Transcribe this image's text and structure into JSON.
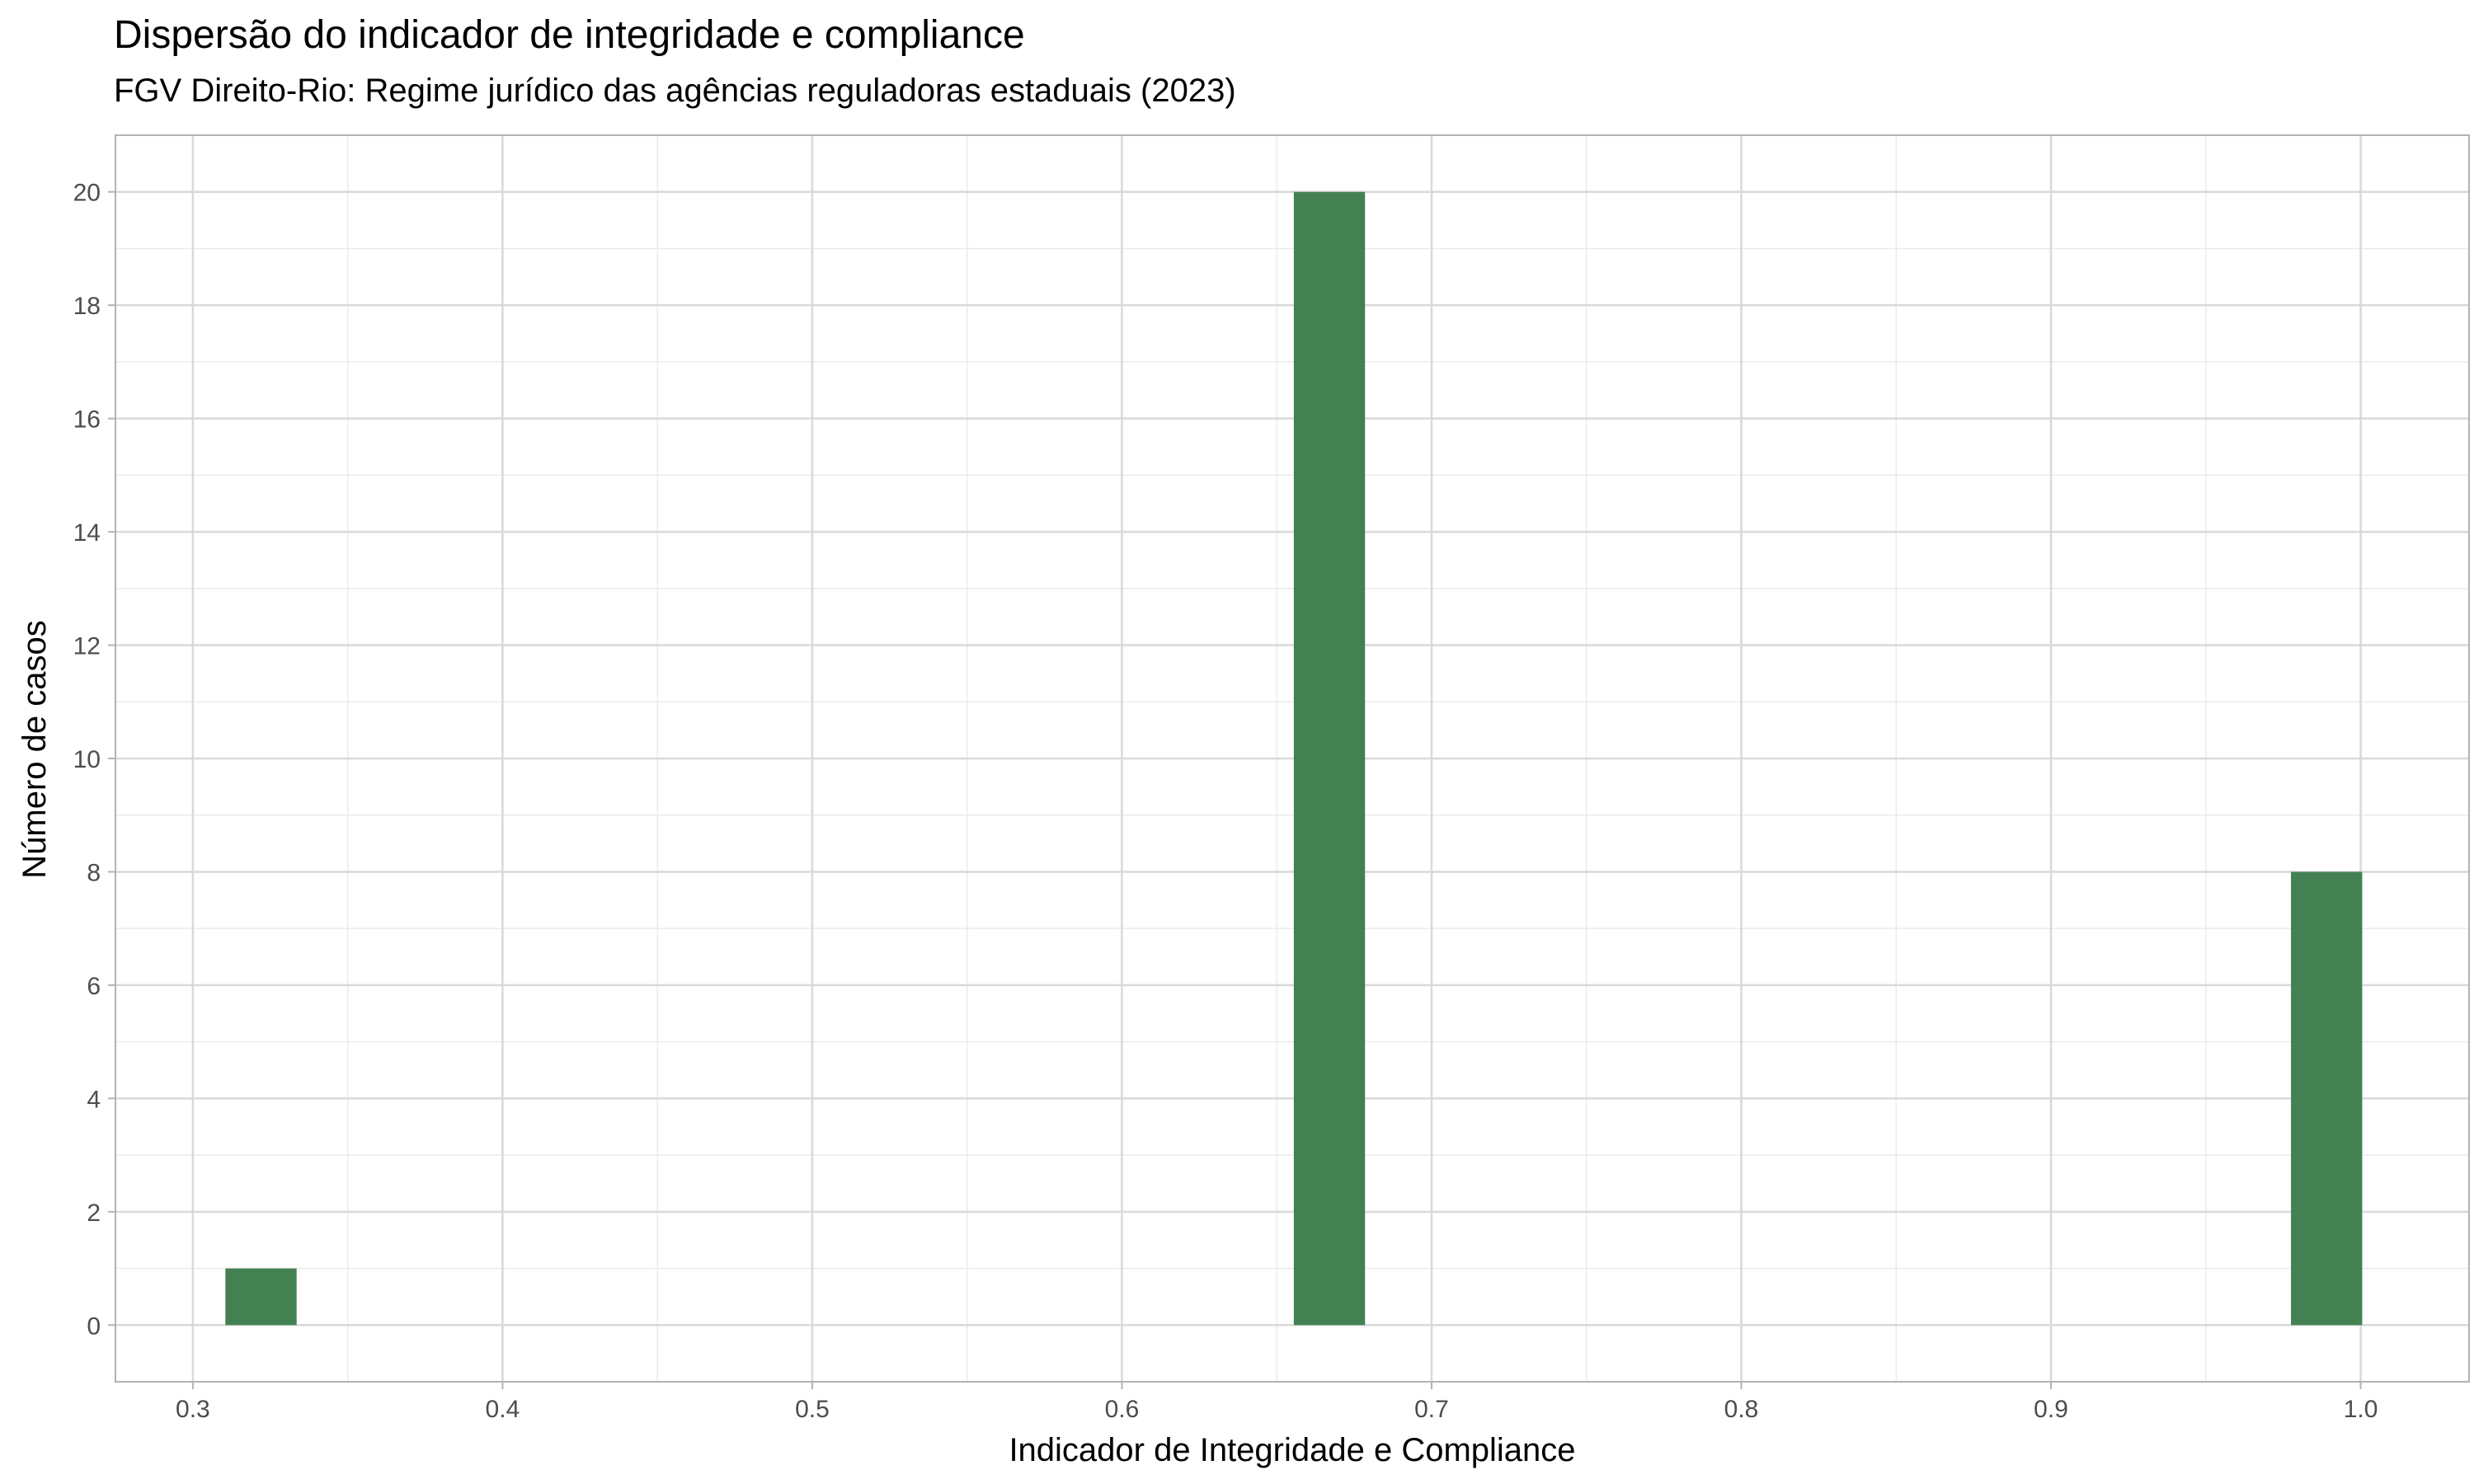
{
  "chart_data": {
    "type": "bar",
    "title": "Dispersão do indicador de integridade e compliance",
    "subtitle": "FGV Direito-Rio: Regime jurídico das agências reguladoras estaduais (2023)",
    "xlabel": "Indicador de Integridade e Compliance",
    "ylabel": "Número de casos",
    "xlim": [
      0.275,
      1.035
    ],
    "ylim": [
      -1,
      21
    ],
    "x_ticks": [
      "0.3",
      "0.4",
      "0.5",
      "0.6",
      "0.7",
      "0.8",
      "0.9",
      "1.0"
    ],
    "y_ticks": [
      "0",
      "2",
      "4",
      "6",
      "8",
      "10",
      "12",
      "14",
      "16",
      "18",
      "20"
    ],
    "bin_width": 0.023,
    "bars": [
      {
        "x": 0.322,
        "value": 1
      },
      {
        "x": 0.667,
        "value": 20
      },
      {
        "x": 0.989,
        "value": 8
      }
    ],
    "bar_color": "#438152",
    "grid": true,
    "legend": "none"
  }
}
